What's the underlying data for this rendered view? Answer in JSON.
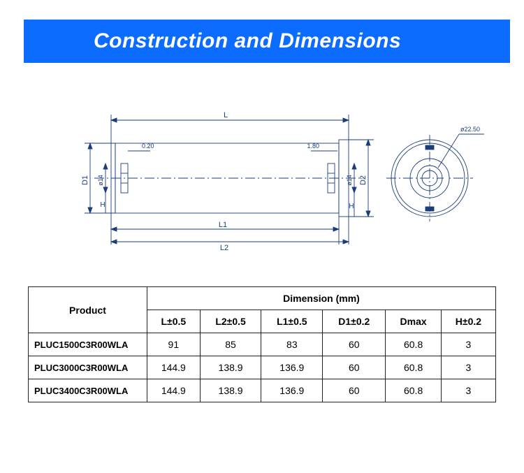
{
  "banner": {
    "title": "Construction and Dimensions",
    "bg": "#0b6cff",
    "fg": "#ffffff"
  },
  "drawing": {
    "stroke": "#1e3a8a",
    "stroke_light": "#1e3a8a",
    "font_color": "#1e3a8a",
    "labels": {
      "L": "L",
      "L1": "L1",
      "L2": "L2",
      "D1": "D1",
      "D2": "D2",
      "H_left": "H",
      "H_right": "H",
      "dia14_left": "ø14",
      "dia14_right": "ø14",
      "small_left": "0.20",
      "small_right": "1.80",
      "end_dia": "ø22.50"
    }
  },
  "table": {
    "product_header": "Product",
    "dim_header": "Dimension (mm)",
    "columns": [
      "L±0.5",
      "L2±0.5",
      "L1±0.5",
      "D1±0.2",
      "Dmax",
      "H±0.2"
    ],
    "rows": [
      {
        "name": "PLUC1500C3R00WLA",
        "values": [
          "91",
          "85",
          "83",
          "60",
          "60.8",
          "3"
        ]
      },
      {
        "name": "PLUC3000C3R00WLA",
        "values": [
          "144.9",
          "138.9",
          "136.9",
          "60",
          "60.8",
          "3"
        ]
      },
      {
        "name": "PLUC3400C3R00WLA",
        "values": [
          "144.9",
          "138.9",
          "136.9",
          "60",
          "60.8",
          "3"
        ]
      }
    ]
  }
}
